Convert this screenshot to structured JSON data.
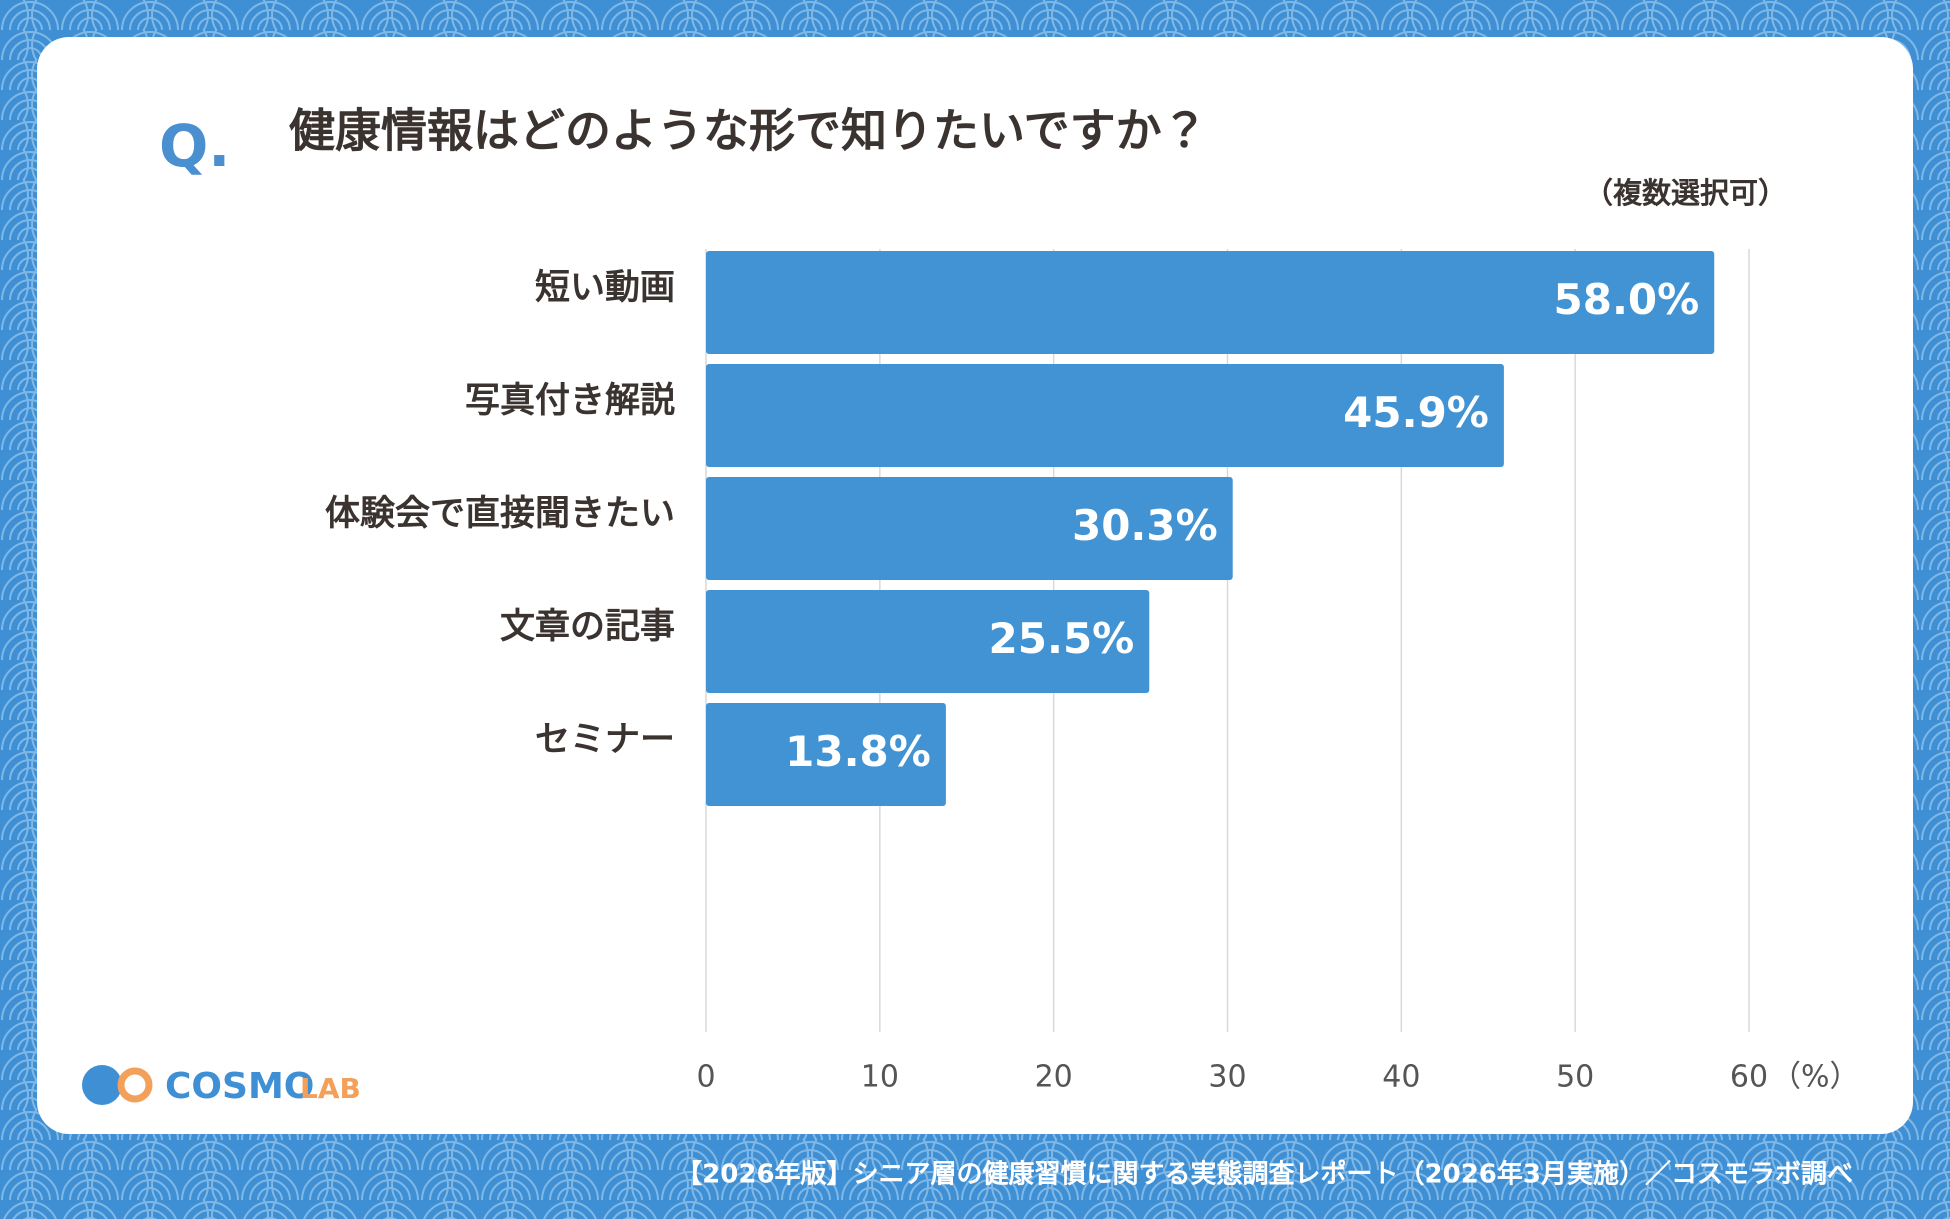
{
  "chart_data": {
    "type": "bar",
    "orientation": "horizontal",
    "question_mark": "Q.",
    "title": "健康情報はどのような形で知りたいですか？",
    "subtitle": "（複数選択可）",
    "categories": [
      "短い動画",
      "写真付き解説",
      "体験会で直接聞きたい",
      "文章の記事",
      "セミナー"
    ],
    "values": [
      58.0,
      45.9,
      30.3,
      25.5,
      13.8
    ],
    "value_labels": [
      "58.0%",
      "45.9%",
      "30.3%",
      "25.5%",
      "13.8%"
    ],
    "color": "#4193d3",
    "xlim": [
      0,
      60
    ],
    "xticks": [
      0,
      10,
      20,
      30,
      40,
      50,
      60
    ],
    "x_unit": "（%）",
    "grid": true
  },
  "logo": {
    "brand": "COSMO",
    "sub": "LAB"
  },
  "footer": "【2026年版】シニア層の健康習慣に関する実態調査レポート（2026年3月実施）／コスモラボ調べ"
}
